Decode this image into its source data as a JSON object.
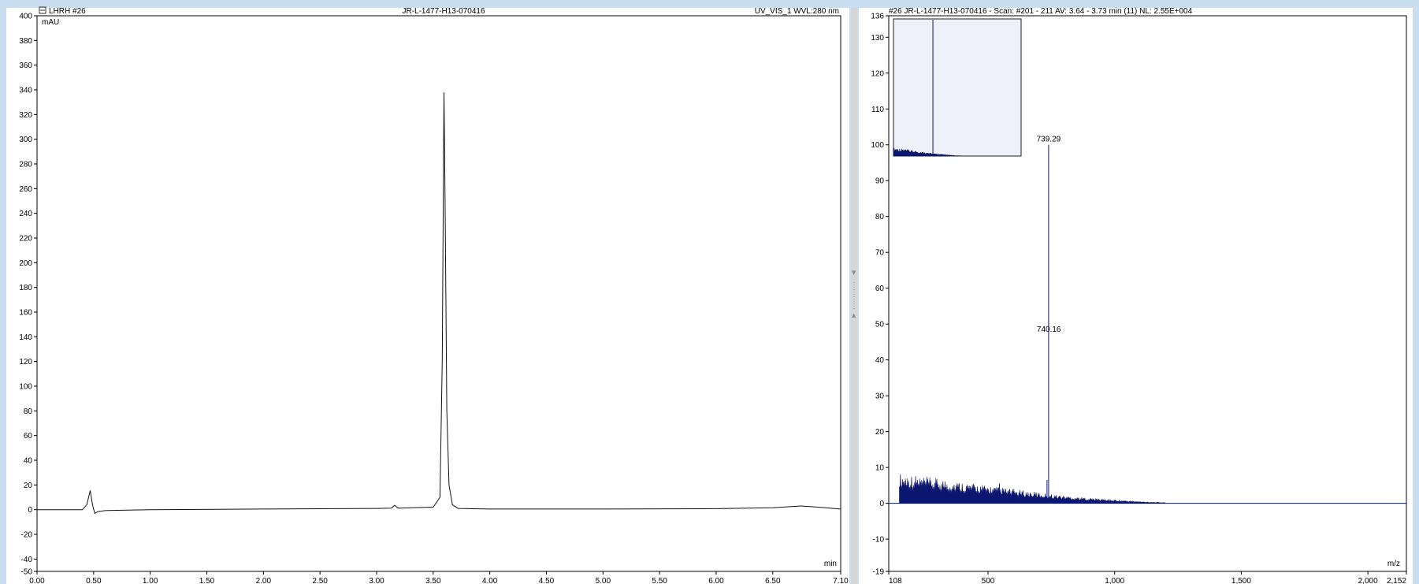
{
  "left_header": {
    "icon": "chromatogram-icon",
    "sample": "LHRH #26",
    "title": "JR-L-1477-H13-070416",
    "detector": "UV_VIS_1 WVL:280 nm"
  },
  "right_header": {
    "text": "#26 JR-L-1477-H13-070416 - Scan: #201 - 211  AV: 3.64 - 3.73 min (11)  NL: 2.55E+004"
  },
  "chart_data": [
    {
      "type": "line",
      "ylabel": "mAU",
      "xlabel": "min",
      "xlim": [
        0,
        7.1
      ],
      "ylim": [
        -50,
        400
      ],
      "x_ticks": [
        "0.00",
        "0.50",
        "1.00",
        "1.50",
        "2.00",
        "2.50",
        "3.00",
        "3.50",
        "4.00",
        "4.50",
        "5.00",
        "5.50",
        "6.00",
        "6.50",
        "7.10"
      ],
      "y_ticks": [
        "400",
        "380",
        "360",
        "340",
        "320",
        "300",
        "280",
        "260",
        "240",
        "220",
        "200",
        "180",
        "160",
        "140",
        "120",
        "100",
        "80",
        "60",
        "40",
        "20",
        "0",
        "-20",
        "-40",
        "-50"
      ],
      "x": [
        0.0,
        0.4,
        0.44,
        0.47,
        0.49,
        0.51,
        0.54,
        0.6,
        0.7,
        1.0,
        2.0,
        3.0,
        3.13,
        3.16,
        3.19,
        3.3,
        3.5,
        3.56,
        3.58,
        3.595,
        3.605,
        3.62,
        3.64,
        3.67,
        3.72,
        4.0,
        5.0,
        6.0,
        6.5,
        6.75,
        6.9,
        7.1
      ],
      "y": [
        0.0,
        0.0,
        4.0,
        15.5,
        4.0,
        -3.0,
        -1.5,
        -0.8,
        -0.5,
        0.0,
        0.5,
        1.0,
        1.2,
        3.5,
        1.2,
        1.5,
        2.0,
        10.0,
        120.0,
        338.0,
        250.0,
        80.0,
        20.0,
        4.0,
        1.0,
        0.5,
        0.5,
        0.8,
        1.5,
        3.0,
        2.0,
        0.5
      ]
    },
    {
      "type": "bar",
      "xlabel": "m/z",
      "xlim": [
        108,
        2152
      ],
      "ylim": [
        -19,
        136
      ],
      "x_ticks": [
        "108",
        "500",
        "1,000",
        "1,500",
        "2,000",
        "2,152"
      ],
      "y_ticks": [
        "136",
        "130",
        "120",
        "110",
        "100",
        "90",
        "80",
        "70",
        "60",
        "50",
        "40",
        "30",
        "20",
        "10",
        "0",
        "-10",
        "-19"
      ],
      "annotations": [
        {
          "label": "739.29",
          "x": 739.29,
          "y": 100
        },
        {
          "label": "740.16",
          "x": 740.16,
          "y": 47
        }
      ],
      "noise_envelope": {
        "x": [
          150,
          250,
          400,
          550,
          700,
          850,
          1000,
          1100,
          1200
        ],
        "y": [
          8.5,
          7.5,
          6,
          4.5,
          3,
          1.8,
          1,
          0.5,
          0.2
        ]
      },
      "spikes": [
        {
          "x": 739.29,
          "y": 100
        },
        {
          "x": 733,
          "y": 6.5
        },
        {
          "x": 558,
          "y": 3.5
        },
        {
          "x": 545,
          "y": 5.5
        },
        {
          "x": 690,
          "y": 3.0
        }
      ]
    }
  ],
  "inset": {
    "xlim": [
      108,
      2152
    ],
    "ylim": [
      0,
      136
    ]
  }
}
